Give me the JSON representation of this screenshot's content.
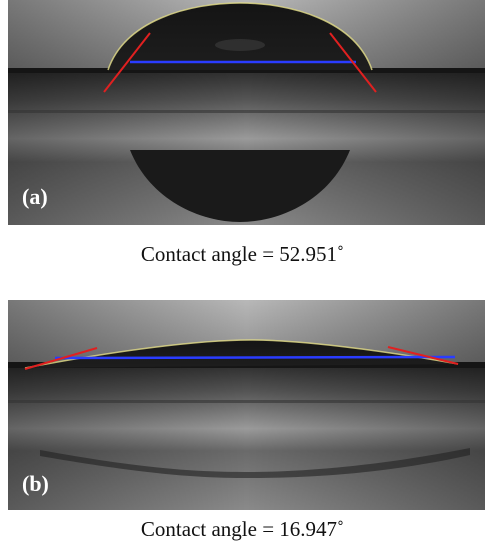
{
  "panels": [
    {
      "label": "(a)",
      "caption": "Contact angle = 52.951˚"
    },
    {
      "label": "(b)",
      "caption": "Contact angle = 16.947˚"
    }
  ]
}
